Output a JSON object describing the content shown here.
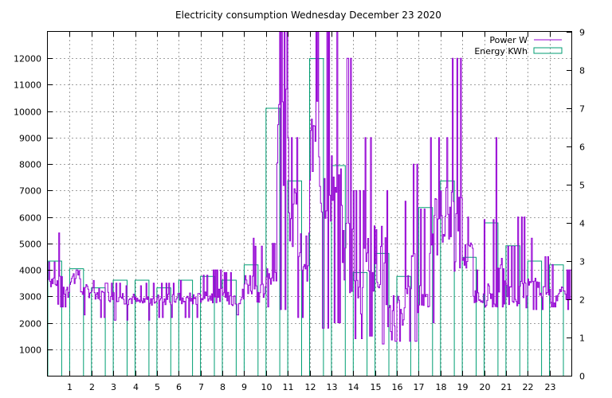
{
  "chart_data": {
    "type": "line",
    "title": "Electricity consumption Wednesday December 23 2020",
    "xlabel": "",
    "ylabel": "",
    "y2label": "",
    "xlim": [
      0,
      24
    ],
    "ylim": [
      0,
      13000
    ],
    "y2lim": [
      0,
      9
    ],
    "grid": true,
    "legend_position": "top-right",
    "x_ticks": [
      "1",
      "2",
      "3",
      "4",
      "5",
      "6",
      "7",
      "8",
      "9",
      "10",
      "11",
      "12",
      "13",
      "14",
      "15",
      "16",
      "17",
      "18",
      "19",
      "20",
      "21",
      "22",
      "23"
    ],
    "y_ticks": [
      "1000",
      "2000",
      "3000",
      "4000",
      "5000",
      "6000",
      "7000",
      "8000",
      "9000",
      "10000",
      "11000",
      "12000"
    ],
    "y2_ticks": [
      "0",
      "1",
      "2",
      "3",
      "4",
      "5",
      "6",
      "7",
      "8",
      "9"
    ],
    "colors": {
      "power": "#9400d3",
      "energy": "#009e73"
    },
    "series": [
      {
        "name": "Power W",
        "axis": "left",
        "style": "steps",
        "x": [
          0,
          0.5,
          1,
          1.5,
          2,
          2.5,
          3,
          3.5,
          4,
          4.5,
          5,
          5.5,
          6,
          6.5,
          7,
          7.5,
          8,
          8.5,
          9,
          9.5,
          10,
          10.5,
          11,
          11.5,
          12,
          12.5,
          13,
          13.5,
          14,
          14.5,
          15,
          15.5,
          16,
          16.5,
          17,
          17.5,
          18,
          18.5,
          19,
          19.5,
          20,
          20.5,
          21,
          21.5,
          22,
          22.5,
          23,
          23.5
        ],
        "values": [
          3600,
          3300,
          3700,
          3200,
          3100,
          3000,
          3000,
          2900,
          2800,
          2900,
          2900,
          2900,
          2900,
          2900,
          3000,
          3000,
          2900,
          3000,
          3500,
          3200,
          3800,
          9000,
          6000,
          4500,
          8500,
          7500,
          7000,
          4000,
          3000,
          4500,
          4500,
          2300,
          2500,
          3500,
          3000,
          5500,
          6000,
          5500,
          4500,
          3000,
          3000,
          3500,
          3100,
          3000,
          3300,
          3300,
          3000,
          3100
        ],
        "max": [
          4300,
          5400,
          4000,
          3800,
          3600,
          3500,
          3500,
          3400,
          3400,
          3500,
          3500,
          3500,
          3600,
          3600,
          3800,
          4000,
          3900,
          4300,
          5200,
          4900,
          5000,
          13000,
          9000,
          7500,
          13000,
          13000,
          13000,
          12000,
          7000,
          9000,
          9000,
          7000,
          6600,
          8000,
          6300,
          9000,
          9000,
          12000,
          6000,
          4000,
          5900,
          9000,
          4900,
          6000,
          5200,
          4500,
          4200,
          4000
        ],
        "min": [
          2700,
          2600,
          2300,
          2300,
          2200,
          2200,
          2100,
          2100,
          2100,
          2100,
          2200,
          2200,
          2200,
          2200,
          2300,
          2300,
          2300,
          2300,
          2300,
          2400,
          2600,
          2500,
          2200,
          2200,
          2100,
          1800,
          2000,
          1500,
          1400,
          1500,
          1200,
          1300,
          1300,
          1300,
          1800,
          2000,
          2200,
          2600,
          2600,
          2600,
          2600,
          2600,
          2500,
          2500,
          2500,
          2500,
          2600,
          2500
        ]
      },
      {
        "name": "Energy KWh",
        "axis": "right",
        "style": "impulse-boxes",
        "x": [
          0,
          1,
          2,
          3,
          4,
          5,
          6,
          7,
          8,
          9,
          10,
          11,
          12,
          13,
          14,
          15,
          16,
          17,
          18,
          19,
          20,
          21,
          22,
          23
        ],
        "values": [
          3.0,
          2.8,
          2.3,
          2.5,
          2.5,
          2.3,
          2.5,
          2.6,
          2.5,
          2.9,
          7.0,
          5.1,
          8.3,
          5.5,
          2.7,
          3.2,
          2.6,
          4.4,
          5.1,
          3.1,
          4.0,
          3.4,
          3.0,
          2.9
        ]
      }
    ]
  }
}
